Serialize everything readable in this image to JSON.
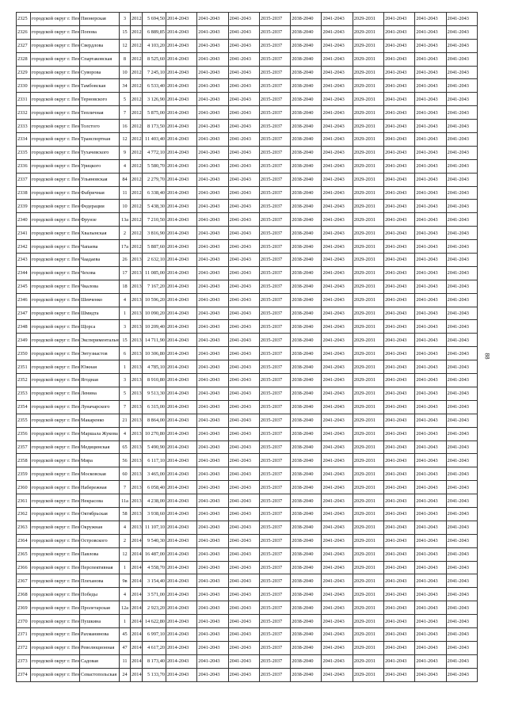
{
  "table": {
    "rows": [
      [
        "2325",
        "городской округ г. Пенза",
        "Пионерская",
        "3",
        "2012",
        "5 694,50",
        "2014-2043",
        "2041-2043",
        "2041-2043",
        "2035-2037",
        "2038-2040",
        "2041-2043",
        "2029-2031",
        "2041-2043",
        "2041-2043",
        "2041-2043"
      ],
      [
        "2326",
        "городской округ г. Пенза",
        "Попова",
        "15",
        "2012",
        "6 889,85",
        "2014-2043",
        "2041-2043",
        "2041-2043",
        "2035-2037",
        "2038-2040",
        "2041-2043",
        "2029-2031",
        "2041-2043",
        "2041-2043",
        "2041-2043"
      ],
      [
        "2327",
        "городской округ г. Пенза",
        "Свердлова",
        "12",
        "2012",
        "4 103,20",
        "2014-2043",
        "2041-2043",
        "2041-2043",
        "2035-2037",
        "2038-2040",
        "2041-2043",
        "2029-2031",
        "2041-2043",
        "2041-2043",
        "2041-2043"
      ],
      [
        "2328",
        "городской округ г. Пенза",
        "Спартаковская",
        "8",
        "2012",
        "8 525,60",
        "2014-2043",
        "2041-2043",
        "2041-2043",
        "2035-2037",
        "2038-2040",
        "2041-2043",
        "2029-2031",
        "2041-2043",
        "2041-2043",
        "2041-2043"
      ],
      [
        "2329",
        "городской округ г. Пенза",
        "Суворова",
        "10",
        "2012",
        "7 245,10",
        "2014-2043",
        "2041-2043",
        "2041-2043",
        "2035-2037",
        "2038-2040",
        "2041-2043",
        "2029-2031",
        "2041-2043",
        "2041-2043",
        "2041-2043"
      ],
      [
        "2330",
        "городской округ г. Пенза",
        "Тамбовская",
        "34",
        "2012",
        "6 533,40",
        "2014-2043",
        "2041-2043",
        "2041-2043",
        "2035-2037",
        "2038-2040",
        "2041-2043",
        "2029-2031",
        "2041-2043",
        "2041-2043",
        "2041-2043"
      ],
      [
        "2331",
        "городской округ г. Пенза",
        "Терновского",
        "5",
        "2012",
        "3 126,90",
        "2014-2043",
        "2041-2043",
        "2041-2043",
        "2035-2037",
        "2038-2040",
        "2041-2043",
        "2029-2031",
        "2041-2043",
        "2041-2043",
        "2041-2043"
      ],
      [
        "2332",
        "городской округ г. Пенза",
        "Тепличная",
        "7",
        "2012",
        "5 875,00",
        "2014-2043",
        "2041-2043",
        "2041-2043",
        "2035-2037",
        "2038-2040",
        "2041-2043",
        "2029-2031",
        "2041-2043",
        "2041-2043",
        "2041-2043"
      ],
      [
        "2333",
        "городской округ г. Пенза",
        "Толстого",
        "16",
        "2012",
        "8 173,50",
        "2014-2043",
        "2041-2043",
        "2041-2043",
        "2035-2037",
        "2038-2040",
        "2041-2043",
        "2029-2031",
        "2041-2043",
        "2041-2043",
        "2041-2043"
      ],
      [
        "2334",
        "городской округ г. Пенза",
        "Транспортная",
        "12",
        "2012",
        "11 403,40",
        "2014-2043",
        "2041-2043",
        "2041-2043",
        "2035-2037",
        "2038-2040",
        "2041-2043",
        "2029-2031",
        "2041-2043",
        "2041-2043",
        "2041-2043"
      ],
      [
        "2335",
        "городской округ г. Пенза",
        "Тухачевского",
        "9",
        "2012",
        "4 772,10",
        "2014-2043",
        "2041-2043",
        "2041-2043",
        "2035-2037",
        "2038-2040",
        "2041-2043",
        "2029-2031",
        "2041-2043",
        "2041-2043",
        "2041-2043"
      ],
      [
        "2336",
        "городской округ г. Пенза",
        "Урицкого",
        "4",
        "2012",
        "5 580,70",
        "2014-2043",
        "2041-2043",
        "2041-2043",
        "2035-2037",
        "2038-2040",
        "2041-2043",
        "2029-2031",
        "2041-2043",
        "2041-2043",
        "2041-2043"
      ],
      [
        "2337",
        "городской округ г. Пенза",
        "Ульяновская",
        "84",
        "2012",
        "2 279,70",
        "2014-2043",
        "2041-2043",
        "2041-2043",
        "2035-2037",
        "2038-2040",
        "2041-2043",
        "2029-2031",
        "2041-2043",
        "2041-2043",
        "2041-2043"
      ],
      [
        "2338",
        "городской округ г. Пенза",
        "Фабричная",
        "11",
        "2012",
        "6 338,40",
        "2014-2043",
        "2041-2043",
        "2041-2043",
        "2035-2037",
        "2038-2040",
        "2041-2043",
        "2029-2031",
        "2041-2043",
        "2041-2043",
        "2041-2043"
      ],
      [
        "2339",
        "городской округ г. Пенза",
        "Федерации",
        "10",
        "2012",
        "5 438,30",
        "2014-2043",
        "2041-2043",
        "2041-2043",
        "2035-2037",
        "2038-2040",
        "2041-2043",
        "2029-2031",
        "2041-2043",
        "2041-2043",
        "2041-2043"
      ],
      [
        "2340",
        "городской округ г. Пенза",
        "Фрунзе",
        "13а",
        "2012",
        "7 210,50",
        "2014-2043",
        "2041-2043",
        "2041-2043",
        "2035-2037",
        "2038-2040",
        "2041-2043",
        "2029-2031",
        "2041-2043",
        "2041-2043",
        "2041-2043"
      ],
      [
        "2341",
        "городской округ г. Пенза",
        "Хвалынская",
        "2",
        "2012",
        "3 816,90",
        "2014-2043",
        "2041-2043",
        "2041-2043",
        "2035-2037",
        "2038-2040",
        "2041-2043",
        "2029-2031",
        "2041-2043",
        "2041-2043",
        "2041-2043"
      ],
      [
        "2342",
        "городской округ г. Пенза",
        "Чапаева",
        "17а",
        "2012",
        "5 887,60",
        "2014-2043",
        "2041-2043",
        "2041-2043",
        "2035-2037",
        "2038-2040",
        "2041-2043",
        "2029-2031",
        "2041-2043",
        "2041-2043",
        "2041-2043"
      ],
      [
        "2343",
        "городской округ г. Пенза",
        "Чаадаева",
        "26",
        "2013",
        "2 632,10",
        "2014-2043",
        "2041-2043",
        "2041-2043",
        "2035-2037",
        "2038-2040",
        "2041-2043",
        "2029-2031",
        "2041-2043",
        "2041-2043",
        "2041-2043"
      ],
      [
        "2344",
        "городской округ г. Пенза",
        "Чехова",
        "17",
        "2013",
        "11 085,00",
        "2014-2043",
        "2041-2043",
        "2041-2043",
        "2035-2037",
        "2038-2040",
        "2041-2043",
        "2029-2031",
        "2041-2043",
        "2041-2043",
        "2041-2043"
      ],
      [
        "2345",
        "городской округ г. Пенза",
        "Чкалова",
        "18",
        "2013",
        "7 167,20",
        "2014-2043",
        "2041-2043",
        "2041-2043",
        "2035-2037",
        "2038-2040",
        "2041-2043",
        "2029-2031",
        "2041-2043",
        "2041-2043",
        "2041-2043"
      ],
      [
        "2346",
        "городской округ г. Пенза",
        "Шевченко",
        "4",
        "2013",
        "10 596,20",
        "2014-2043",
        "2041-2043",
        "2041-2043",
        "2035-2037",
        "2038-2040",
        "2041-2043",
        "2029-2031",
        "2041-2043",
        "2041-2043",
        "2041-2043"
      ],
      [
        "2347",
        "городской округ г. Пенза",
        "Шмидта",
        "1",
        "2013",
        "10 090,20",
        "2014-2043",
        "2041-2043",
        "2041-2043",
        "2035-2037",
        "2038-2040",
        "2041-2043",
        "2029-2031",
        "2041-2043",
        "2041-2043",
        "2041-2043"
      ],
      [
        "2348",
        "городской округ г. Пенза",
        "Щорса",
        "3",
        "2013",
        "10 209,40",
        "2014-2043",
        "2041-2043",
        "2041-2043",
        "2035-2037",
        "2038-2040",
        "2041-2043",
        "2029-2031",
        "2041-2043",
        "2041-2043",
        "2041-2043"
      ],
      [
        "2349",
        "городской округ г. Пенза",
        "Экспериментальная",
        "15",
        "2013",
        "14 711,90",
        "2014-2043",
        "2041-2043",
        "2041-2043",
        "2035-2037",
        "2038-2040",
        "2041-2043",
        "2029-2031",
        "2041-2043",
        "2041-2043",
        "2041-2043"
      ],
      [
        "2350",
        "городской округ г. Пенза",
        "Энтузиастов",
        "6",
        "2013",
        "10 306,80",
        "2014-2043",
        "2041-2043",
        "2041-2043",
        "2035-2037",
        "2038-2040",
        "2041-2043",
        "2029-2031",
        "2041-2043",
        "2041-2043",
        "2041-2043"
      ],
      [
        "2351",
        "городской округ г. Пенза",
        "Южная",
        "1",
        "2013",
        "4 785,10",
        "2014-2043",
        "2041-2043",
        "2041-2043",
        "2035-2037",
        "2038-2040",
        "2041-2043",
        "2029-2031",
        "2041-2043",
        "2041-2043",
        "2041-2043"
      ],
      [
        "2352",
        "городской округ г. Пенза",
        "Ягодная",
        "3",
        "2013",
        "8 910,80",
        "2014-2043",
        "2041-2043",
        "2041-2043",
        "2035-2037",
        "2038-2040",
        "2041-2043",
        "2029-2031",
        "2041-2043",
        "2041-2043",
        "2041-2043"
      ],
      [
        "2353",
        "городской округ г. Пенза",
        "Ленина",
        "5",
        "2013",
        "9 513,30",
        "2014-2043",
        "2041-2043",
        "2041-2043",
        "2035-2037",
        "2038-2040",
        "2041-2043",
        "2029-2031",
        "2041-2043",
        "2041-2043",
        "2041-2043"
      ],
      [
        "2354",
        "городской округ г. Пенза",
        "Луначарского",
        "7",
        "2013",
        "6 315,00",
        "2014-2043",
        "2041-2043",
        "2041-2043",
        "2035-2037",
        "2038-2040",
        "2041-2043",
        "2029-2031",
        "2041-2043",
        "2041-2043",
        "2041-2043"
      ],
      [
        "2355",
        "городской округ г. Пенза",
        "Макаренко",
        "21",
        "2013",
        "8 864,00",
        "2014-2043",
        "2041-2043",
        "2041-2043",
        "2035-2037",
        "2038-2040",
        "2041-2043",
        "2029-2031",
        "2041-2043",
        "2041-2043",
        "2041-2043"
      ],
      [
        "2356",
        "городской округ г. Пенза",
        "Маршала Жукова",
        "4",
        "2013",
        "10 270,80",
        "2014-2043",
        "2041-2043",
        "2041-2043",
        "2035-2037",
        "2038-2040",
        "2041-2043",
        "2029-2031",
        "2041-2043",
        "2041-2043",
        "2041-2043"
      ],
      [
        "2357",
        "городской округ г. Пенза",
        "Медицинская",
        "65",
        "2013",
        "5 490,90",
        "2014-2043",
        "2041-2043",
        "2041-2043",
        "2035-2037",
        "2038-2040",
        "2041-2043",
        "2029-2031",
        "2041-2043",
        "2041-2043",
        "2041-2043"
      ],
      [
        "2358",
        "городской округ г. Пенза",
        "Мира",
        "56",
        "2013",
        "6 117,10",
        "2014-2043",
        "2041-2043",
        "2041-2043",
        "2035-2037",
        "2038-2040",
        "2041-2043",
        "2029-2031",
        "2041-2043",
        "2041-2043",
        "2041-2043"
      ],
      [
        "2359",
        "городской округ г. Пенза",
        "Московская",
        "60",
        "2013",
        "3 465,00",
        "2014-2043",
        "2041-2043",
        "2041-2043",
        "2035-2037",
        "2038-2040",
        "2041-2043",
        "2029-2031",
        "2041-2043",
        "2041-2043",
        "2041-2043"
      ],
      [
        "2360",
        "городской округ г. Пенза",
        "Набережная",
        "7",
        "2013",
        "6 058,40",
        "2014-2043",
        "2041-2043",
        "2041-2043",
        "2035-2037",
        "2038-2040",
        "2041-2043",
        "2029-2031",
        "2041-2043",
        "2041-2043",
        "2041-2043"
      ],
      [
        "2361",
        "городской округ г. Пенза",
        "Некрасова",
        "11а",
        "2013",
        "4 238,00",
        "2014-2043",
        "2041-2043",
        "2041-2043",
        "2035-2037",
        "2038-2040",
        "2041-2043",
        "2029-2031",
        "2041-2043",
        "2041-2043",
        "2041-2043"
      ],
      [
        "2362",
        "городской округ г. Пенза",
        "Октябрьская",
        "58",
        "2013",
        "3 938,60",
        "2014-2043",
        "2041-2043",
        "2041-2043",
        "2035-2037",
        "2038-2040",
        "2041-2043",
        "2029-2031",
        "2041-2043",
        "2041-2043",
        "2041-2043"
      ],
      [
        "2363",
        "городской округ г. Пенза",
        "Окружная",
        "4",
        "2013",
        "11 107,10",
        "2014-2043",
        "2041-2043",
        "2041-2043",
        "2035-2037",
        "2038-2040",
        "2041-2043",
        "2029-2031",
        "2041-2043",
        "2041-2043",
        "2041-2043"
      ],
      [
        "2364",
        "городской округ г. Пенза",
        "Островского",
        "2",
        "2014",
        "9 540,30",
        "2014-2043",
        "2041-2043",
        "2041-2043",
        "2035-2037",
        "2038-2040",
        "2041-2043",
        "2029-2031",
        "2041-2043",
        "2041-2043",
        "2041-2043"
      ],
      [
        "2365",
        "городской округ г. Пенза",
        "Павлова",
        "12",
        "2014",
        "16 487,00",
        "2014-2043",
        "2041-2043",
        "2041-2043",
        "2035-2037",
        "2038-2040",
        "2041-2043",
        "2029-2031",
        "2041-2043",
        "2041-2043",
        "2041-2043"
      ],
      [
        "2366",
        "городской округ г. Пенза",
        "Перспективная",
        "1",
        "2014",
        "4 558,70",
        "2014-2043",
        "2041-2043",
        "2041-2043",
        "2035-2037",
        "2038-2040",
        "2041-2043",
        "2029-2031",
        "2041-2043",
        "2041-2043",
        "2041-2043"
      ],
      [
        "2367",
        "городской округ г. Пенза",
        "Плеханова",
        "9в",
        "2014",
        "3 154,40",
        "2014-2043",
        "2041-2043",
        "2041-2043",
        "2035-2037",
        "2038-2040",
        "2041-2043",
        "2029-2031",
        "2041-2043",
        "2041-2043",
        "2041-2043"
      ],
      [
        "2368",
        "городской округ г. Пенза",
        "Победы",
        "4",
        "2014",
        "3 571,00",
        "2014-2043",
        "2041-2043",
        "2041-2043",
        "2035-2037",
        "2038-2040",
        "2041-2043",
        "2029-2031",
        "2041-2043",
        "2041-2043",
        "2041-2043"
      ],
      [
        "2369",
        "городской округ г. Пенза",
        "Пролетарская",
        "12а",
        "2014",
        "2 923,20",
        "2014-2043",
        "2041-2043",
        "2041-2043",
        "2035-2037",
        "2038-2040",
        "2041-2043",
        "2029-2031",
        "2041-2043",
        "2041-2043",
        "2041-2043"
      ],
      [
        "2370",
        "городской округ г. Пенза",
        "Пушкина",
        "1",
        "2014",
        "14 622,80",
        "2014-2043",
        "2041-2043",
        "2041-2043",
        "2035-2037",
        "2038-2040",
        "2041-2043",
        "2029-2031",
        "2041-2043",
        "2041-2043",
        "2041-2043"
      ],
      [
        "2371",
        "городской округ г. Пенза",
        "Рахманинова",
        "45",
        "2014",
        "6 997,10",
        "2014-2043",
        "2041-2043",
        "2041-2043",
        "2035-2037",
        "2038-2040",
        "2041-2043",
        "2029-2031",
        "2041-2043",
        "2041-2043",
        "2041-2043"
      ],
      [
        "2372",
        "городской округ г. Пенза",
        "Революционная",
        "47",
        "2014",
        "4 617,20",
        "2014-2043",
        "2041-2043",
        "2041-2043",
        "2035-2037",
        "2038-2040",
        "2041-2043",
        "2029-2031",
        "2041-2043",
        "2041-2043",
        "2041-2043"
      ],
      [
        "2373",
        "городской округ г. Пенза",
        "Садовая",
        "11",
        "2014",
        "8 173,40",
        "2014-2043",
        "2041-2043",
        "2041-2043",
        "2035-2037",
        "2038-2040",
        "2041-2043",
        "2029-2031",
        "2041-2043",
        "2041-2043",
        "2041-2043"
      ],
      [
        "2374",
        "городской округ г. Пенза",
        "Севастопольская",
        "24",
        "2014",
        "5 133,70",
        "2014-2043",
        "2041-2043",
        "2041-2043",
        "2035-2037",
        "2038-2040",
        "2041-2043",
        "2029-2031",
        "2041-2043",
        "2041-2043",
        "2041-2043"
      ]
    ]
  },
  "page_number": "88"
}
